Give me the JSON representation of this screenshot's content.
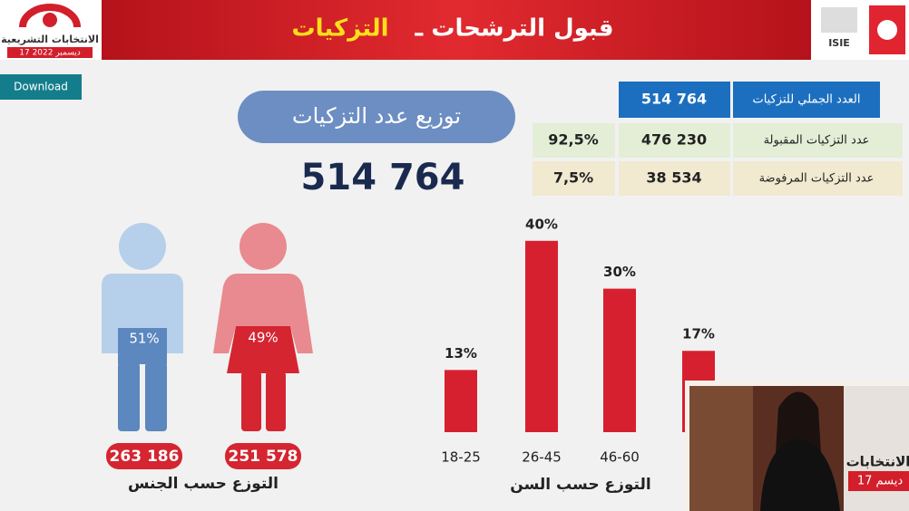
{
  "header": {
    "title": "قبول الترشحات ـ",
    "title_highlight": "التزكيات",
    "logo_left_title": "الانتخابات التشريعية",
    "logo_left_date": "17 ديسمبر 2022",
    "logo_right": "ISIE"
  },
  "download": "Download",
  "summary": {
    "pill": "توزيع عدد التزكيات",
    "total": "514 764",
    "rows": [
      {
        "label": "العدد الجملي للتزكيات",
        "value": "514 764"
      },
      {
        "label": "عدد التزكيات المقبولة",
        "value": "476 230",
        "percent": "92,5%"
      },
      {
        "label": "عدد التزكيات المرفوضة",
        "value": "38 534",
        "percent": "7,5%"
      }
    ]
  },
  "gender": {
    "caption": "التوزع حسب الجنس",
    "men": {
      "percent": "51%",
      "count": "263 186"
    },
    "women": {
      "percent": "49%",
      "count": "251 578"
    }
  },
  "overlay": {
    "text": "الانتخابات",
    "date": "17 ديسم"
  },
  "chart_data": {
    "type": "bar",
    "title": "التوزع حسب السن",
    "categories": [
      "18-25",
      "26-45",
      "46-60",
      null
    ],
    "values": [
      13,
      40,
      30,
      17
    ],
    "value_labels": [
      "13%",
      "40%",
      "30%",
      "17%"
    ],
    "color": "#d7202f"
  }
}
